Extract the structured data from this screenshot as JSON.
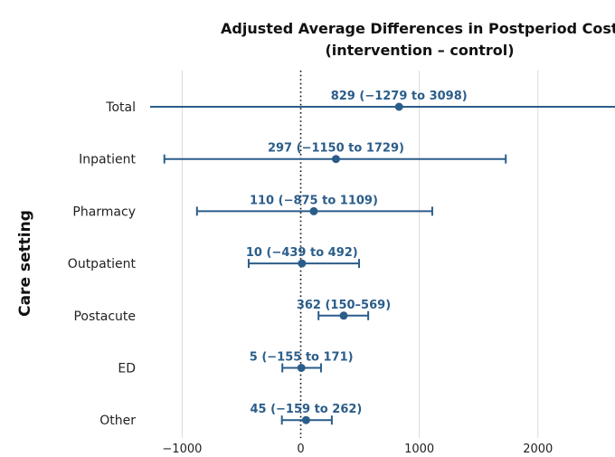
{
  "chart_data": {
    "type": "forest",
    "title": "Adjusted Average Differences in Postperiod Costs",
    "subtitle": "(intervention – control)",
    "ylabel": "Care setting",
    "xlabel": "",
    "xlim": [
      -1270,
      2650
    ],
    "x_ticks": [
      -1000,
      0,
      1000,
      2000
    ],
    "x_tick_labels": [
      "−1000",
      "0",
      "1000",
      "2000"
    ],
    "grid": true,
    "reference_line": 0,
    "colors": {
      "series": "#2b5d8a",
      "grid": "#d9d9d9",
      "reference": "#111111"
    },
    "categories": [
      "Total",
      "Inpatient",
      "Pharmacy",
      "Outpatient",
      "Postacute",
      "ED",
      "Other"
    ],
    "points": [
      {
        "category": "Total",
        "estimate": 829,
        "lower": -1279,
        "upper": 3098,
        "label": "829 (−1279 to 3098)"
      },
      {
        "category": "Inpatient",
        "estimate": 297,
        "lower": -1150,
        "upper": 1729,
        "label": "297 (−1150 to 1729)"
      },
      {
        "category": "Pharmacy",
        "estimate": 110,
        "lower": -875,
        "upper": 1109,
        "label": "110 (−875 to 1109)"
      },
      {
        "category": "Outpatient",
        "estimate": 10,
        "lower": -439,
        "upper": 492,
        "label": "10 (−439 to 492)"
      },
      {
        "category": "Postacute",
        "estimate": 362,
        "lower": 150,
        "upper": 569,
        "label": "362 (150–569)"
      },
      {
        "category": "ED",
        "estimate": 5,
        "lower": -155,
        "upper": 171,
        "label": "5 (−155 to 171)"
      },
      {
        "category": "Other",
        "estimate": 45,
        "lower": -159,
        "upper": 262,
        "label": "45 (−159 to 262)"
      }
    ]
  }
}
